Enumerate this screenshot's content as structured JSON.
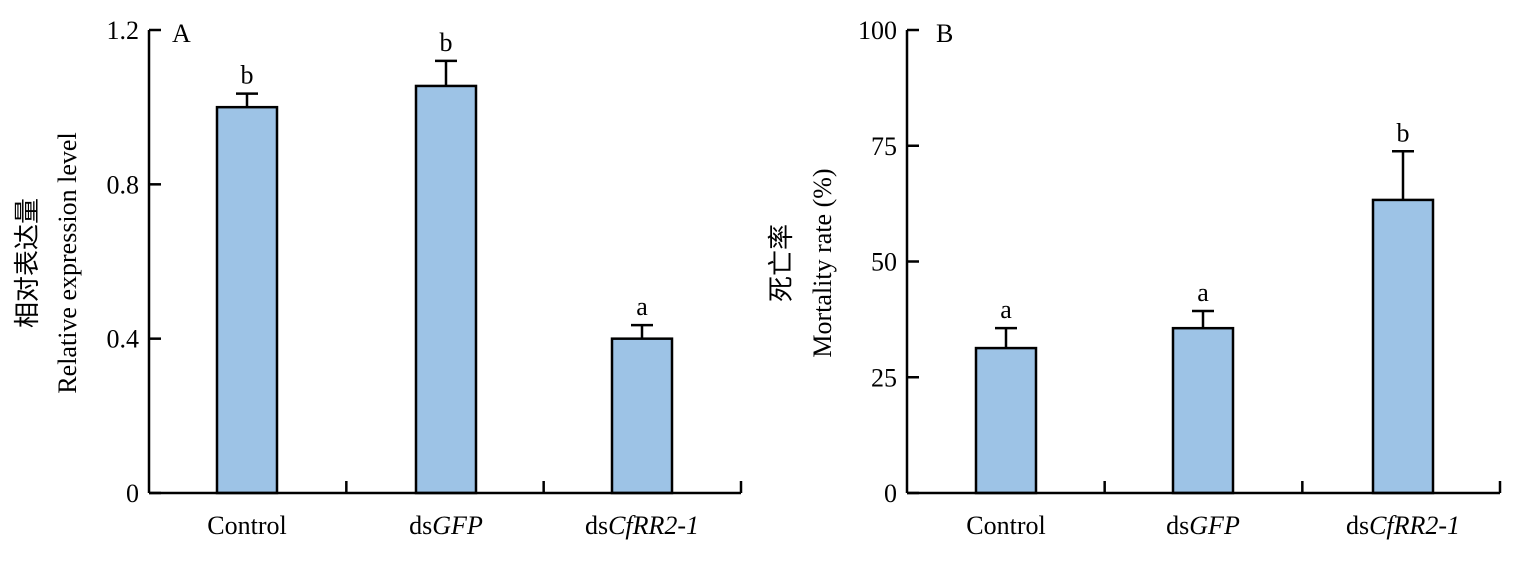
{
  "chart_data": [
    {
      "type": "bar",
      "panel_label": "A",
      "categories": [
        {
          "prefix": "",
          "italic": "",
          "plain": "Control"
        },
        {
          "prefix": "ds",
          "italic": "GFP",
          "plain": ""
        },
        {
          "prefix": "ds",
          "italic": "CfRR2-1",
          "plain": ""
        }
      ],
      "values": [
        1.0,
        1.055,
        0.4
      ],
      "errors": [
        0.035,
        0.065,
        0.035
      ],
      "significance": [
        "b",
        "b",
        "a"
      ],
      "ylabel_cn": "相对表达量",
      "ylabel": "Relative expression level",
      "ylim": [
        0,
        1.2
      ],
      "yticks": [
        0,
        0.4,
        0.8,
        1.2
      ],
      "ytick_labels": [
        "0",
        "0.4",
        "0.8",
        "1.2"
      ],
      "bar_color": "#9dc3e6",
      "grid": false
    },
    {
      "type": "bar",
      "panel_label": "B",
      "categories": [
        {
          "prefix": "",
          "italic": "",
          "plain": "Control"
        },
        {
          "prefix": "ds",
          "italic": "GFP",
          "plain": ""
        },
        {
          "prefix": "ds",
          "italic": "CfRR2-1",
          "plain": ""
        }
      ],
      "values": [
        31.3,
        35.6,
        63.3
      ],
      "errors": [
        4.3,
        3.7,
        10.5
      ],
      "significance": [
        "a",
        "a",
        "b"
      ],
      "ylabel_cn": "死亡率",
      "ylabel": "Mortality rate (%)",
      "ylim": [
        0,
        100
      ],
      "yticks": [
        0,
        25,
        50,
        75,
        100
      ],
      "ytick_labels": [
        "0",
        "25",
        "50",
        "75",
        "100"
      ],
      "bar_color": "#9dc3e6",
      "grid": false
    }
  ]
}
